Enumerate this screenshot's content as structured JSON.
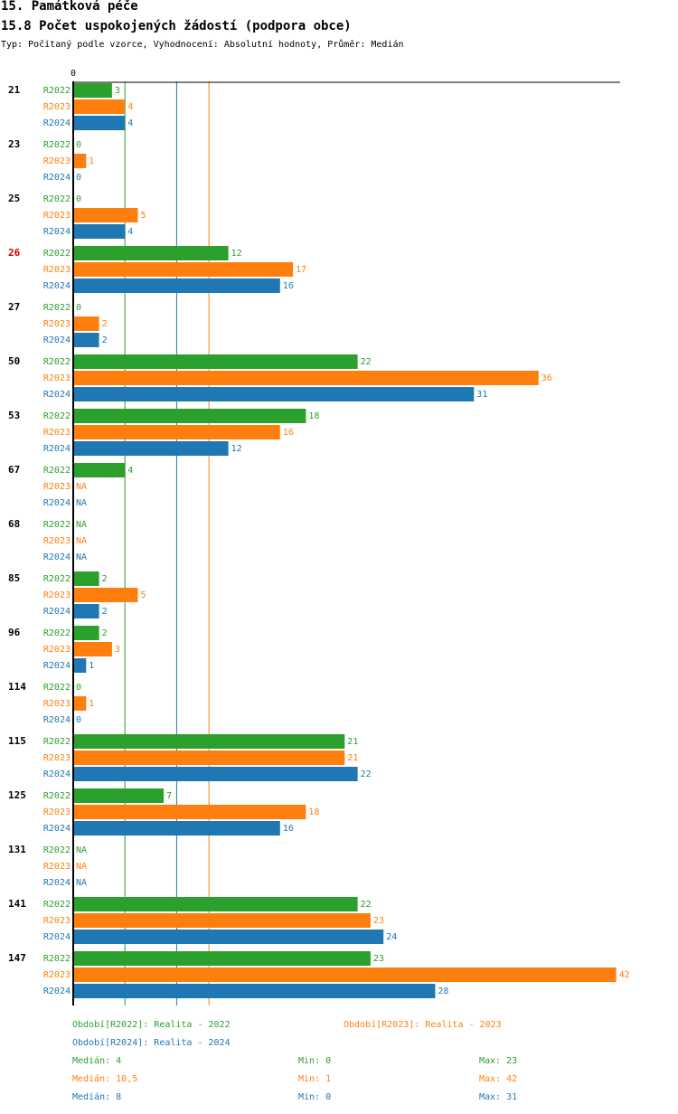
{
  "header": {
    "title": "15. Památková péče",
    "subtitle": "15.8 Počet uspokojených žádostí (podpora obce)",
    "type_line": "Typ: Počítaný podle vzorce, Vyhodnocení: Absolutní hodnoty, Průměr: Medián"
  },
  "colors": {
    "R2022": "#2ca02c",
    "R2023": "#ff7f0e",
    "R2024": "#1f77b4",
    "highlight": "#cc0000"
  },
  "chart_data": {
    "type": "bar",
    "orientation": "horizontal",
    "axis_zero_label": "0",
    "highlight_category": "26",
    "series_names": [
      "R2022",
      "R2023",
      "R2024"
    ],
    "categories": [
      "21",
      "23",
      "25",
      "26",
      "27",
      "50",
      "53",
      "67",
      "68",
      "85",
      "96",
      "114",
      "115",
      "125",
      "131",
      "141",
      "147"
    ],
    "series": [
      {
        "name": "R2022",
        "values": [
          3,
          0,
          0,
          12,
          0,
          22,
          18,
          4,
          null,
          2,
          2,
          0,
          21,
          7,
          null,
          22,
          23
        ]
      },
      {
        "name": "R2023",
        "values": [
          4,
          1,
          5,
          17,
          2,
          36,
          16,
          null,
          null,
          5,
          3,
          1,
          21,
          18,
          null,
          23,
          42
        ]
      },
      {
        "name": "R2024",
        "values": [
          4,
          0,
          4,
          16,
          2,
          31,
          12,
          null,
          null,
          2,
          1,
          0,
          22,
          16,
          null,
          24,
          28
        ]
      }
    ],
    "na_label": "NA",
    "medians": {
      "R2022": 4,
      "R2023": 10.5,
      "R2024": 8
    },
    "xlim": [
      0,
      42
    ]
  },
  "legend": {
    "r2022": "Období[R2022]: Realita - 2022",
    "r2023": "Období[R2023]: Realita - 2023",
    "r2024": "Období[R2024]: Realita - 2024"
  },
  "stats": [
    {
      "median": "Medián: 4",
      "min": "Min: 0",
      "max": "Max: 23"
    },
    {
      "median": "Medián: 10,5",
      "min": "Min: 1",
      "max": "Max: 42"
    },
    {
      "median": "Medián: 8",
      "min": "Min: 0",
      "max": "Max: 31"
    }
  ]
}
